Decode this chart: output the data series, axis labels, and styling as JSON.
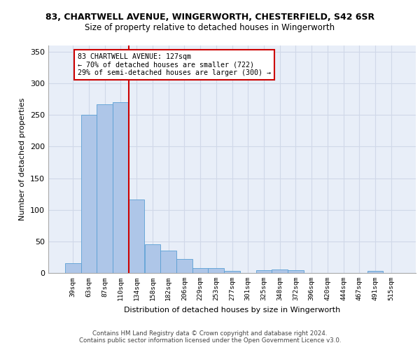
{
  "title_line1": "83, CHARTWELL AVENUE, WINGERWORTH, CHESTERFIELD, S42 6SR",
  "title_line2": "Size of property relative to detached houses in Wingerworth",
  "xlabel": "Distribution of detached houses by size in Wingerworth",
  "ylabel": "Number of detached properties",
  "categories": [
    "39sqm",
    "63sqm",
    "87sqm",
    "110sqm",
    "134sqm",
    "158sqm",
    "182sqm",
    "206sqm",
    "229sqm",
    "253sqm",
    "277sqm",
    "301sqm",
    "325sqm",
    "348sqm",
    "372sqm",
    "396sqm",
    "420sqm",
    "444sqm",
    "467sqm",
    "491sqm",
    "515sqm"
  ],
  "values": [
    16,
    250,
    267,
    270,
    116,
    45,
    36,
    22,
    8,
    8,
    3,
    0,
    4,
    5,
    4,
    0,
    0,
    0,
    0,
    3,
    0
  ],
  "bar_color": "#aec6e8",
  "bar_edge_color": "#5a9fd4",
  "property_line_x": 3.5,
  "annotation_text_line1": "83 CHARTWELL AVENUE: 127sqm",
  "annotation_text_line2": "← 70% of detached houses are smaller (722)",
  "annotation_text_line3": "29% of semi-detached houses are larger (300) →",
  "annotation_box_color": "#cc0000",
  "annotation_bg": "#ffffff",
  "ylim": [
    0,
    360
  ],
  "yticks": [
    0,
    50,
    100,
    150,
    200,
    250,
    300,
    350
  ],
  "grid_color": "#d0d8e8",
  "background_color": "#e8eef8",
  "footer_line1": "Contains HM Land Registry data © Crown copyright and database right 2024.",
  "footer_line2": "Contains public sector information licensed under the Open Government Licence v3.0."
}
